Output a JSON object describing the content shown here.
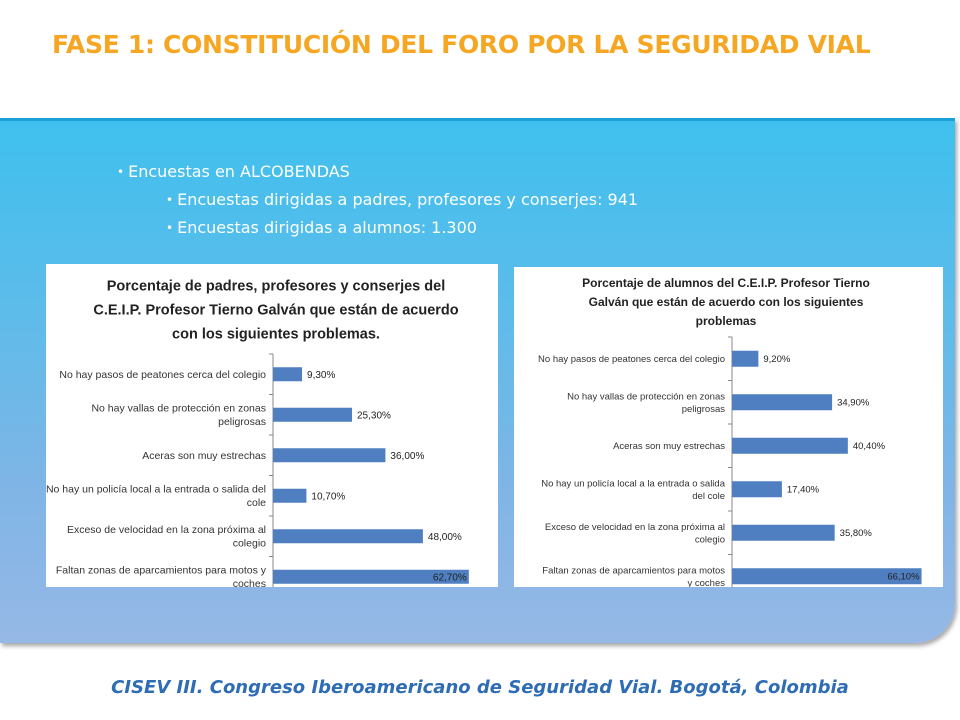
{
  "title": "FASE 1: CONSTITUCIÓN DEL FORO POR LA SEGURIDAD VIAL",
  "bullets": {
    "main": "Encuestas en ALCOBENDAS",
    "sub1": "Encuestas dirigidas a padres, profesores y conserjes: 941",
    "sub2": "Encuestas dirigidas a alumnos: 1.300"
  },
  "footer": "CISEV III. Congreso Iberoamericano de Seguridad Vial. Bogotá, Colombia",
  "colors": {
    "title": "#f5a623",
    "bar": "#4f7fc0",
    "footer": "#2e6db4"
  },
  "chart_data": [
    {
      "type": "bar",
      "orientation": "horizontal",
      "title_lines": [
        "Porcentaje de padres, profesores y conserjes del",
        "C.E.I.P. Profesor Tierno Galván que están de acuerdo",
        "con los siguientes problemas."
      ],
      "categories": [
        [
          "No hay pasos de peatones cerca del colegio"
        ],
        [
          "No hay vallas de protección en zonas",
          "peligrosas"
        ],
        [
          "Aceras son muy estrechas"
        ],
        [
          "No hay un policía local a la entrada o salida del",
          "cole"
        ],
        [
          "Exceso de velocidad en la zona próxima al",
          "colegio"
        ],
        [
          "Faltan zonas de aparcamientos para motos y",
          "coches"
        ]
      ],
      "values": [
        9.3,
        25.3,
        36.0,
        10.7,
        48.0,
        62.7
      ],
      "labels": [
        "9,30%",
        "25,30%",
        "36,00%",
        "10,70%",
        "48,00%",
        "62,70%"
      ],
      "xlim": [
        0,
        65
      ]
    },
    {
      "type": "bar",
      "orientation": "horizontal",
      "title_lines": [
        "Porcentaje de alumnos del C.E.I.P. Profesor Tierno",
        "Galván que están de acuerdo con los siguientes",
        "problemas"
      ],
      "categories": [
        [
          "No hay pasos de peatones cerca del colegio"
        ],
        [
          "No hay vallas de protección en zonas",
          "peligrosas"
        ],
        [
          "Aceras son muy estrechas"
        ],
        [
          "No hay un policía local a la entrada o salida",
          "del cole"
        ],
        [
          "Exceso de velocidad en la zona próxima al",
          "colegio"
        ],
        [
          "Faltan zonas de aparcamientos para motos",
          "y coches"
        ]
      ],
      "values": [
        9.2,
        34.9,
        40.4,
        17.4,
        35.8,
        66.1
      ],
      "labels": [
        "9,20%",
        "34,90%",
        "40,40%",
        "17,40%",
        "35,80%",
        "66,10%"
      ],
      "xlim": [
        0,
        68
      ]
    }
  ]
}
